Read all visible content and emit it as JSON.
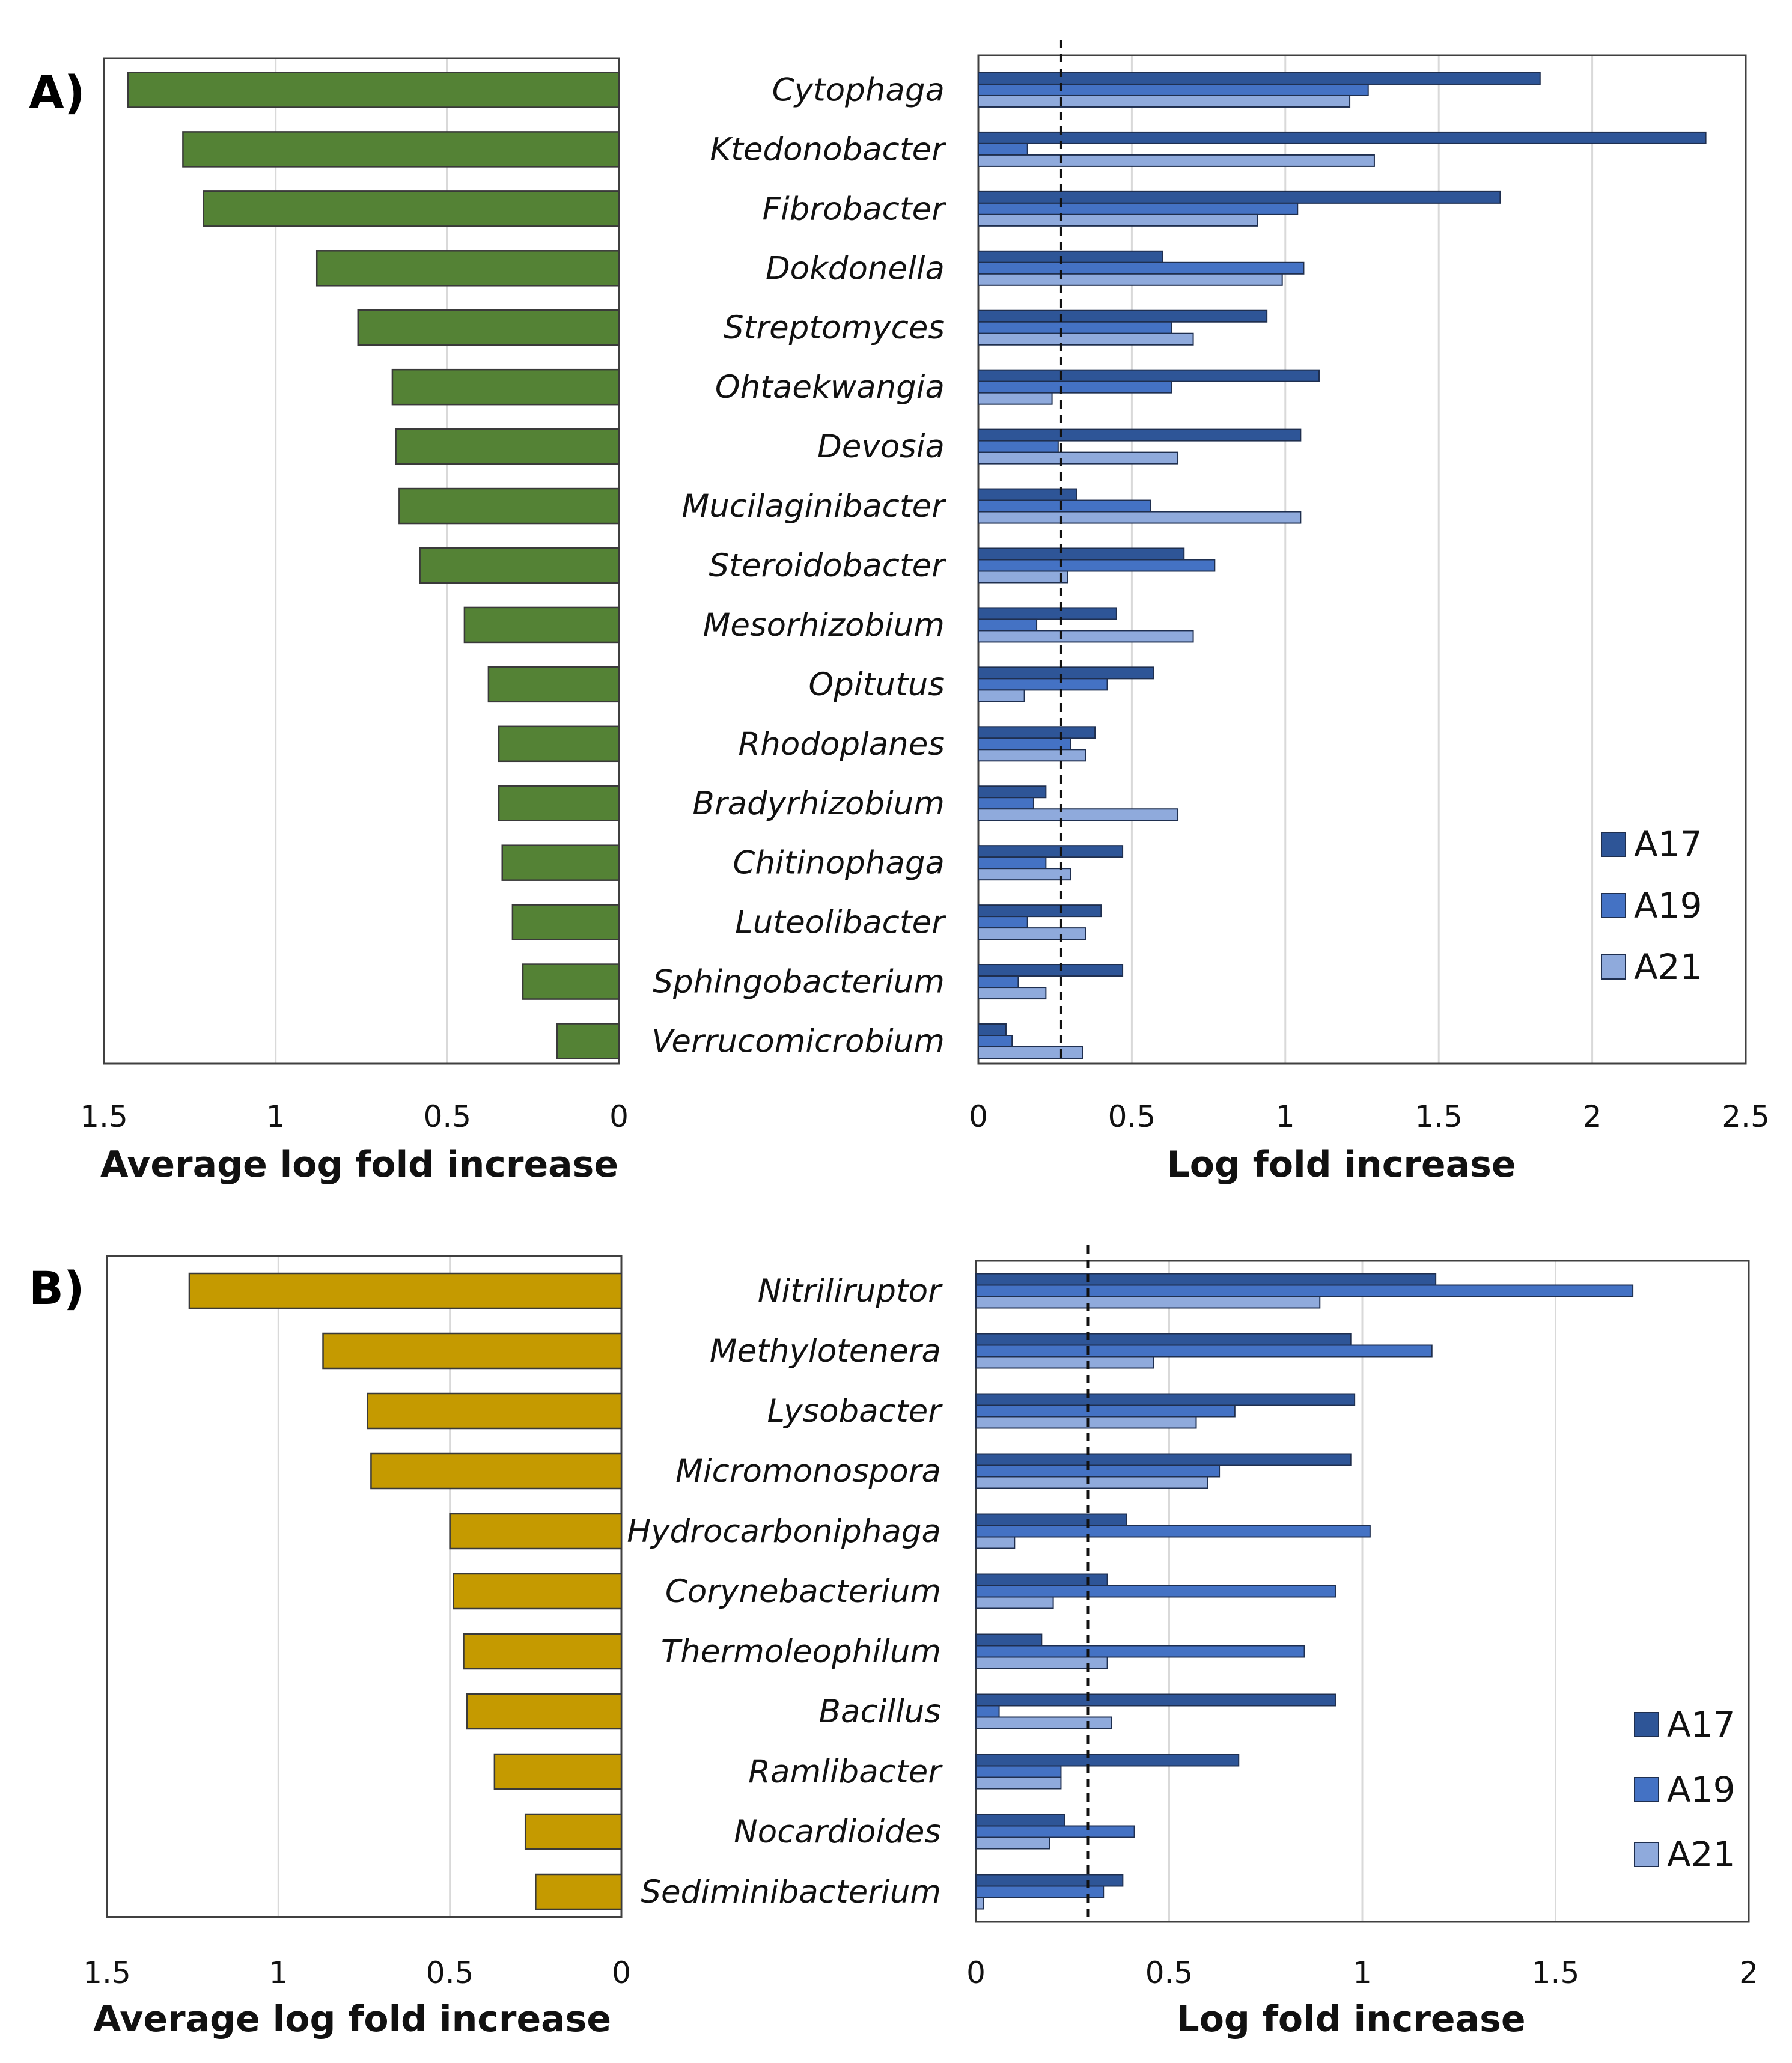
{
  "colors": {
    "green": "#548235",
    "gold": "#C59A00",
    "A17": "#2E5597",
    "A19": "#4472C4",
    "A21": "#8FAADC",
    "grid": "#d9d9d9",
    "frame": "#404040"
  },
  "chart_data": [
    {
      "panel": "A)",
      "genera": [
        "Cytophaga",
        "Ktedonobacter",
        "Fibrobacter",
        "Dokdonella",
        "Streptomyces",
        "Ohtaekwangia",
        "Devosia",
        "Mucilaginibacter",
        "Steroidobacter",
        "Mesorhizobium",
        "Opitutus",
        "Rhodoplanes",
        "Bradyrhizobium",
        "Chitinophaga",
        "Luteolibacter",
        "Sphingobacterium",
        "Verrucomicrobium"
      ],
      "left": {
        "type": "bar",
        "orientation": "horizontal",
        "direction": "reversed",
        "xlabel": "Average log fold increase",
        "xlim": [
          0,
          1.5
        ],
        "ticks": [
          "1.5",
          "1",
          "0.5",
          "0"
        ],
        "values": [
          1.43,
          1.27,
          1.21,
          0.88,
          0.76,
          0.66,
          0.65,
          0.64,
          0.58,
          0.45,
          0.38,
          0.35,
          0.35,
          0.34,
          0.31,
          0.28,
          0.18
        ]
      },
      "right": {
        "type": "bar",
        "orientation": "horizontal",
        "xlabel": "Log fold increase",
        "xlim": [
          0,
          2.5
        ],
        "ticks": [
          "0",
          "0.5",
          "1",
          "1.5",
          "2",
          "2.5"
        ],
        "threshold": 0.27,
        "legend": [
          "A17",
          "A19",
          "A21"
        ],
        "series": [
          {
            "name": "A17",
            "values": [
              1.83,
              2.37,
              1.7,
              0.6,
              0.94,
              1.11,
              1.05,
              0.32,
              0.67,
              0.45,
              0.57,
              0.38,
              0.22,
              0.47,
              0.4,
              0.47,
              0.09
            ]
          },
          {
            "name": "A19",
            "values": [
              1.27,
              0.16,
              1.04,
              1.06,
              0.63,
              0.63,
              0.26,
              0.56,
              0.77,
              0.19,
              0.42,
              0.3,
              0.18,
              0.22,
              0.16,
              0.13,
              0.11
            ]
          },
          {
            "name": "A21",
            "values": [
              1.21,
              1.29,
              0.91,
              0.99,
              0.7,
              0.24,
              0.65,
              1.05,
              0.29,
              0.7,
              0.15,
              0.35,
              0.65,
              0.3,
              0.35,
              0.22,
              0.34
            ]
          }
        ]
      }
    },
    {
      "panel": "B)",
      "genera": [
        "Nitriliruptor",
        "Methylotenera",
        "Lysobacter",
        "Micromonospora",
        "Hydrocarboniphaga",
        "Corynebacterium",
        "Thermoleophilum",
        "Bacillus",
        "Ramlibacter",
        "Nocardioides",
        "Sediminibacterium"
      ],
      "left": {
        "type": "bar",
        "orientation": "horizontal",
        "direction": "reversed",
        "xlabel": "Average log fold increase",
        "xlim": [
          0,
          1.5
        ],
        "ticks": [
          "1.5",
          "1",
          "0.5",
          "0"
        ],
        "values": [
          1.26,
          0.87,
          0.74,
          0.73,
          0.5,
          0.49,
          0.46,
          0.45,
          0.37,
          0.28,
          0.25
        ]
      },
      "right": {
        "type": "bar",
        "orientation": "horizontal",
        "xlabel": "Log fold increase",
        "xlim": [
          0,
          2
        ],
        "ticks": [
          "0",
          "0.5",
          "1",
          "1.5",
          "2"
        ],
        "threshold": 0.29,
        "legend": [
          "A17",
          "A19",
          "A21"
        ],
        "series": [
          {
            "name": "A17",
            "values": [
              1.19,
              0.97,
              0.98,
              0.97,
              0.39,
              0.34,
              0.17,
              0.93,
              0.68,
              0.23,
              0.38
            ]
          },
          {
            "name": "A19",
            "values": [
              1.7,
              1.18,
              0.67,
              0.63,
              1.02,
              0.93,
              0.85,
              0.06,
              0.22,
              0.41,
              0.33
            ]
          },
          {
            "name": "A21",
            "values": [
              0.89,
              0.46,
              0.57,
              0.6,
              0.1,
              0.2,
              0.34,
              0.35,
              0.22,
              0.19,
              0.02
            ]
          }
        ]
      }
    }
  ]
}
